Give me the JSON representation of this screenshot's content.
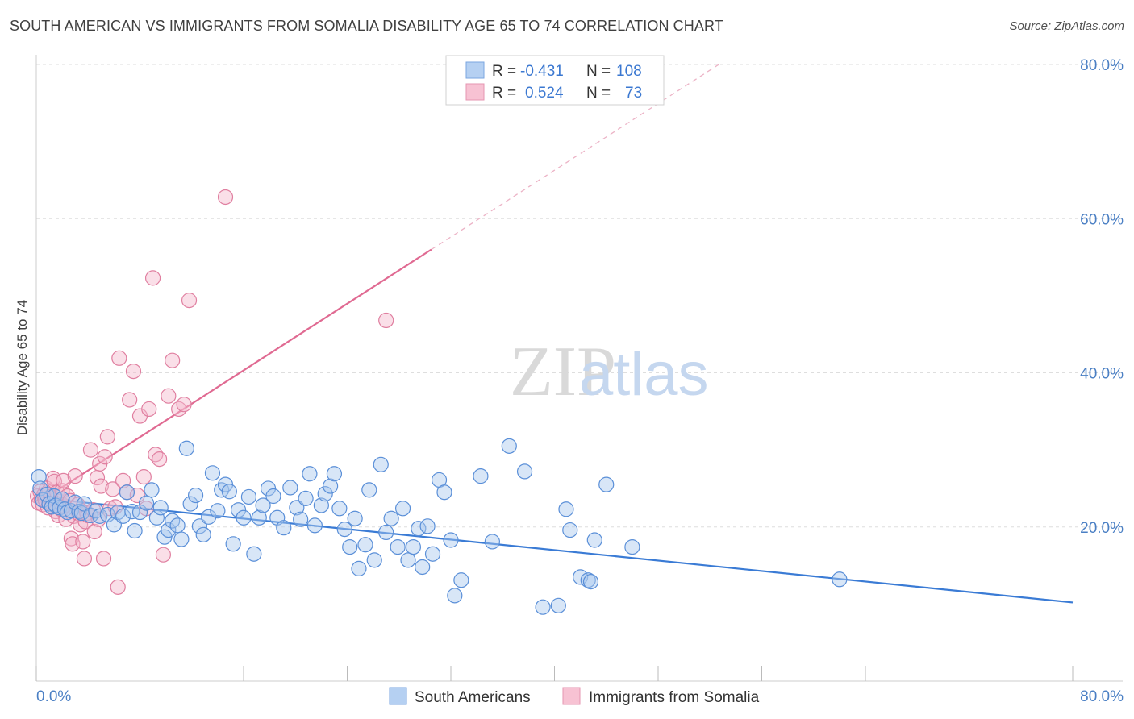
{
  "title": "SOUTH AMERICAN VS IMMIGRANTS FROM SOMALIA DISABILITY AGE 65 TO 74 CORRELATION CHART",
  "source": "Source: ZipAtlas.com",
  "watermark": {
    "zip": "ZIP",
    "atlas": "atlas"
  },
  "colors": {
    "blue": "#3a7bd5",
    "blue_fill": "#a8c8ee",
    "pink": "#e06a92",
    "pink_fill": "#f5b9cc",
    "tick_text": "#4a7fc4",
    "grid": "#dddddd"
  },
  "legend": {
    "rows": [
      {
        "r_label": "R = ",
        "r_value": "-0.431",
        "n_label": "N = ",
        "n_value": "108"
      },
      {
        "r_label": "R = ",
        "r_value": "0.524",
        "n_label": "N = ",
        "n_value": "73"
      }
    ]
  },
  "bottom_legend": [
    "South Americans",
    "Immigrants from Somalia"
  ],
  "chart_data": {
    "type": "scatter",
    "title": "SOUTH AMERICAN VS IMMIGRANTS FROM SOMALIA DISABILITY AGE 65 TO 74 CORRELATION CHART",
    "xlabel": "",
    "ylabel": "Disability Age 65 to 74",
    "xlim": [
      0,
      80
    ],
    "ylim": [
      0,
      80
    ],
    "x_tick_labels": [
      "0.0%",
      "80.0%"
    ],
    "y_tick_labels": [
      "20.0%",
      "40.0%",
      "60.0%",
      "80.0%"
    ],
    "y_ticks": [
      20,
      40,
      60,
      80
    ],
    "grid": true,
    "legend_position": "top-center",
    "series": [
      {
        "name": "South Americans",
        "r": -0.431,
        "n": 108,
        "trend": {
          "x": [
            0,
            80
          ],
          "y": [
            23.8,
            10.2
          ]
        },
        "points": [
          [
            0.2,
            26.5
          ],
          [
            0.3,
            25.0
          ],
          [
            0.5,
            23.5
          ],
          [
            0.8,
            24.2
          ],
          [
            1.0,
            23.0
          ],
          [
            1.2,
            22.6
          ],
          [
            1.4,
            24.0
          ],
          [
            1.5,
            22.8
          ],
          [
            1.8,
            22.5
          ],
          [
            2.0,
            23.6
          ],
          [
            2.2,
            22.3
          ],
          [
            2.4,
            21.9
          ],
          [
            2.7,
            22.1
          ],
          [
            3.0,
            23.2
          ],
          [
            3.3,
            22.0
          ],
          [
            3.5,
            21.8
          ],
          [
            3.7,
            23.0
          ],
          [
            4.2,
            21.5
          ],
          [
            4.6,
            22.1
          ],
          [
            4.9,
            21.4
          ],
          [
            5.5,
            21.6
          ],
          [
            6.0,
            20.3
          ],
          [
            6.3,
            21.9
          ],
          [
            6.7,
            21.4
          ],
          [
            7.0,
            24.5
          ],
          [
            7.4,
            22.0
          ],
          [
            7.6,
            19.5
          ],
          [
            8.0,
            21.9
          ],
          [
            8.5,
            23.1
          ],
          [
            8.9,
            24.8
          ],
          [
            9.3,
            21.2
          ],
          [
            9.6,
            22.5
          ],
          [
            9.9,
            18.7
          ],
          [
            10.2,
            19.6
          ],
          [
            10.5,
            20.8
          ],
          [
            10.9,
            20.2
          ],
          [
            11.2,
            18.4
          ],
          [
            11.6,
            30.2
          ],
          [
            11.9,
            23.0
          ],
          [
            12.3,
            24.1
          ],
          [
            12.6,
            20.1
          ],
          [
            12.9,
            19.0
          ],
          [
            13.3,
            21.3
          ],
          [
            13.6,
            27.0
          ],
          [
            14.0,
            22.1
          ],
          [
            14.3,
            24.8
          ],
          [
            14.6,
            25.5
          ],
          [
            14.9,
            24.6
          ],
          [
            15.2,
            17.8
          ],
          [
            15.6,
            22.2
          ],
          [
            16.0,
            21.2
          ],
          [
            16.4,
            23.9
          ],
          [
            16.8,
            16.5
          ],
          [
            17.2,
            21.2
          ],
          [
            17.5,
            22.8
          ],
          [
            17.9,
            25.0
          ],
          [
            18.3,
            24.0
          ],
          [
            18.6,
            21.2
          ],
          [
            19.1,
            19.9
          ],
          [
            19.6,
            25.1
          ],
          [
            20.1,
            22.5
          ],
          [
            20.4,
            21.0
          ],
          [
            20.8,
            23.7
          ],
          [
            21.1,
            26.9
          ],
          [
            21.5,
            20.2
          ],
          [
            22.0,
            22.8
          ],
          [
            22.3,
            24.3
          ],
          [
            22.7,
            25.3
          ],
          [
            23.0,
            26.9
          ],
          [
            23.4,
            22.4
          ],
          [
            23.8,
            19.7
          ],
          [
            24.2,
            17.4
          ],
          [
            24.6,
            21.1
          ],
          [
            24.9,
            14.6
          ],
          [
            25.4,
            17.7
          ],
          [
            25.7,
            24.8
          ],
          [
            26.1,
            15.7
          ],
          [
            26.6,
            28.1
          ],
          [
            27.0,
            19.3
          ],
          [
            27.4,
            21.1
          ],
          [
            27.9,
            17.4
          ],
          [
            28.3,
            22.4
          ],
          [
            28.7,
            15.7
          ],
          [
            29.1,
            17.4
          ],
          [
            29.5,
            19.8
          ],
          [
            29.8,
            14.8
          ],
          [
            30.2,
            20.1
          ],
          [
            30.6,
            16.5
          ],
          [
            31.1,
            26.1
          ],
          [
            31.5,
            24.5
          ],
          [
            32.0,
            18.3
          ],
          [
            32.3,
            11.1
          ],
          [
            32.8,
            13.1
          ],
          [
            34.3,
            26.6
          ],
          [
            35.2,
            18.1
          ],
          [
            36.5,
            30.5
          ],
          [
            37.7,
            27.2
          ],
          [
            39.1,
            9.6
          ],
          [
            40.3,
            9.8
          ],
          [
            40.9,
            22.3
          ],
          [
            41.2,
            19.6
          ],
          [
            42.0,
            13.5
          ],
          [
            42.6,
            13.1
          ],
          [
            42.8,
            12.9
          ],
          [
            43.1,
            18.3
          ],
          [
            44.0,
            25.5
          ],
          [
            46.0,
            17.4
          ],
          [
            62.0,
            13.2
          ]
        ]
      },
      {
        "name": "Immigrants from Somalia",
        "r": 0.524,
        "n": 73,
        "trend": {
          "x": [
            0,
            30.5
          ],
          "y": [
            23.0,
            56.0
          ]
        },
        "points": [
          [
            0.1,
            24.0
          ],
          [
            0.2,
            23.1
          ],
          [
            0.3,
            24.6
          ],
          [
            0.4,
            23.6
          ],
          [
            0.5,
            22.9
          ],
          [
            0.6,
            24.2
          ],
          [
            0.7,
            23.5
          ],
          [
            0.8,
            25.0
          ],
          [
            0.9,
            22.5
          ],
          [
            1.0,
            24.7
          ],
          [
            1.1,
            23.9
          ],
          [
            1.2,
            23.0
          ],
          [
            1.3,
            26.3
          ],
          [
            1.4,
            25.9
          ],
          [
            1.5,
            22.0
          ],
          [
            1.6,
            24.5
          ],
          [
            1.7,
            21.5
          ],
          [
            1.8,
            23.3
          ],
          [
            1.9,
            22.3
          ],
          [
            2.0,
            24.7
          ],
          [
            2.1,
            26.0
          ],
          [
            2.2,
            22.7
          ],
          [
            2.3,
            21.0
          ],
          [
            2.4,
            24.0
          ],
          [
            2.6,
            23.4
          ],
          [
            2.7,
            18.5
          ],
          [
            2.8,
            17.8
          ],
          [
            2.9,
            21.4
          ],
          [
            3.0,
            26.6
          ],
          [
            3.2,
            22.9
          ],
          [
            3.3,
            21.7
          ],
          [
            3.4,
            20.3
          ],
          [
            3.5,
            22.1
          ],
          [
            3.6,
            18.1
          ],
          [
            3.7,
            15.9
          ],
          [
            3.8,
            20.7
          ],
          [
            3.9,
            21.8
          ],
          [
            4.0,
            21.5
          ],
          [
            4.2,
            30.0
          ],
          [
            4.4,
            22.2
          ],
          [
            4.5,
            19.4
          ],
          [
            4.7,
            26.4
          ],
          [
            4.8,
            21.0
          ],
          [
            4.9,
            28.2
          ],
          [
            5.0,
            25.3
          ],
          [
            5.2,
            15.9
          ],
          [
            5.3,
            29.1
          ],
          [
            5.5,
            31.7
          ],
          [
            5.7,
            22.4
          ],
          [
            5.9,
            24.9
          ],
          [
            6.1,
            22.6
          ],
          [
            6.3,
            12.2
          ],
          [
            6.4,
            41.9
          ],
          [
            6.7,
            26.0
          ],
          [
            7.0,
            24.5
          ],
          [
            7.2,
            36.5
          ],
          [
            7.5,
            40.2
          ],
          [
            7.8,
            24.1
          ],
          [
            8.0,
            34.4
          ],
          [
            8.3,
            26.5
          ],
          [
            8.5,
            22.4
          ],
          [
            8.7,
            35.3
          ],
          [
            9.0,
            52.3
          ],
          [
            9.2,
            29.4
          ],
          [
            9.5,
            28.8
          ],
          [
            9.8,
            16.4
          ],
          [
            10.2,
            37.0
          ],
          [
            10.5,
            41.6
          ],
          [
            11.0,
            35.3
          ],
          [
            11.4,
            35.9
          ],
          [
            11.8,
            49.4
          ],
          [
            14.6,
            62.8
          ],
          [
            27.0,
            46.8
          ]
        ]
      }
    ]
  }
}
